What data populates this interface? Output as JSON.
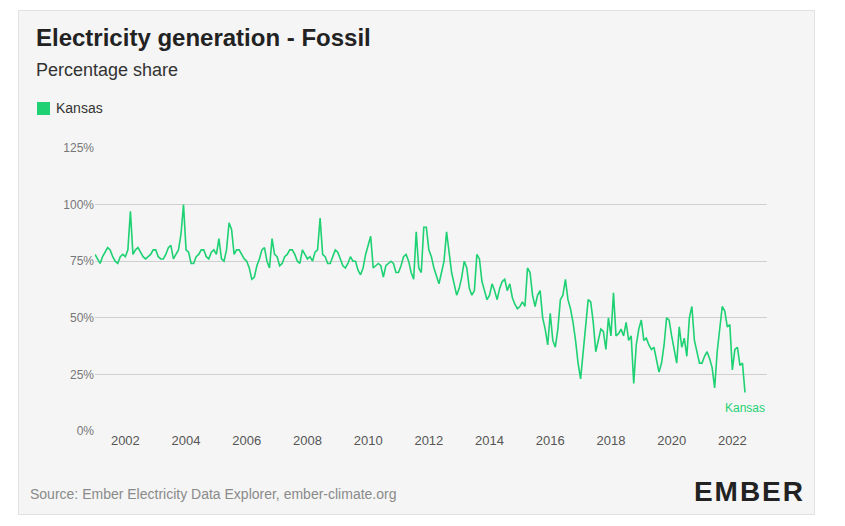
{
  "chart_data": {
    "type": "line",
    "title": "Electricity generation - Fossil",
    "subtitle": "Percentage share",
    "source": "Source: Ember Electricity Data Explorer, ember-climate.org",
    "logo": "EMBER",
    "legend": "top left",
    "grid": true,
    "ylim": [
      0,
      125
    ],
    "yticks": [
      {
        "value": 0,
        "label": "0%"
      },
      {
        "value": 25,
        "label": "25%"
      },
      {
        "value": 50,
        "label": "50%"
      },
      {
        "value": 75,
        "label": "75%"
      },
      {
        "value": 100,
        "label": "100%"
      },
      {
        "value": 125,
        "label": "125%"
      }
    ],
    "categories": [
      null,
      null,
      null,
      null,
      null,
      null,
      null,
      null,
      null,
      null,
      null,
      null,
      "2002",
      null,
      null,
      null,
      null,
      null,
      null,
      null,
      null,
      null,
      null,
      null,
      null,
      null,
      null,
      null,
      null,
      null,
      null,
      null,
      null,
      null,
      null,
      null,
      "2004",
      null,
      null,
      null,
      null,
      null,
      null,
      null,
      null,
      null,
      null,
      null,
      null,
      null,
      null,
      null,
      null,
      null,
      null,
      null,
      null,
      null,
      null,
      null,
      "2006",
      null,
      null,
      null,
      null,
      null,
      null,
      null,
      null,
      null,
      null,
      null,
      null,
      null,
      null,
      null,
      null,
      null,
      null,
      null,
      null,
      null,
      null,
      null,
      "2008",
      null,
      null,
      null,
      null,
      null,
      null,
      null,
      null,
      null,
      null,
      null,
      null,
      null,
      null,
      null,
      null,
      null,
      null,
      null,
      null,
      null,
      null,
      null,
      "2010",
      null,
      null,
      null,
      null,
      null,
      null,
      null,
      null,
      null,
      null,
      null,
      null,
      null,
      null,
      null,
      null,
      null,
      null,
      null,
      null,
      null,
      null,
      null,
      "2012",
      null,
      null,
      null,
      null,
      null,
      null,
      null,
      null,
      null,
      null,
      null,
      null,
      null,
      null,
      null,
      null,
      null,
      null,
      null,
      null,
      null,
      null,
      null,
      "2014",
      null,
      null,
      null,
      null,
      null,
      null,
      null,
      null,
      null,
      null,
      null,
      null,
      null,
      null,
      null,
      null,
      null,
      null,
      null,
      null,
      null,
      null,
      null,
      "2016",
      null,
      null,
      null,
      null,
      null,
      null,
      null,
      null,
      null,
      null,
      null,
      null,
      null,
      null,
      null,
      null,
      null,
      null,
      null,
      null,
      null,
      null,
      null,
      "2018",
      null,
      null,
      null,
      null,
      null,
      null,
      null,
      null,
      null,
      null,
      null,
      null,
      null,
      null,
      null,
      null,
      null,
      null,
      null,
      null,
      null,
      null,
      null,
      "2020",
      null,
      null,
      null,
      null,
      null,
      null,
      null,
      null,
      null,
      null,
      null,
      null,
      null,
      null,
      null,
      null,
      null,
      null,
      null,
      null,
      null,
      null,
      null,
      "2022",
      null,
      null,
      null,
      null,
      null
    ],
    "series": [
      {
        "name": "Kansas",
        "color": "#1ed173",
        "values": [
          78,
          76,
          74,
          77,
          79,
          81,
          80,
          77,
          75,
          74,
          77,
          78,
          77,
          80,
          97,
          78,
          80,
          81,
          79,
          77,
          76,
          77,
          78,
          80,
          80,
          77,
          76,
          76,
          78,
          81,
          82,
          76,
          78,
          80,
          87,
          100,
          80,
          79,
          74,
          74,
          77,
          78,
          80,
          80,
          77,
          76,
          79,
          80,
          78,
          85,
          76,
          75,
          80,
          92,
          89,
          78,
          80,
          80,
          78,
          76,
          75,
          72,
          67,
          68,
          73,
          76,
          80,
          81,
          75,
          72,
          85,
          78,
          77,
          73,
          74,
          77,
          78,
          80,
          80,
          78,
          75,
          74,
          80,
          78,
          76,
          77,
          75,
          79,
          80,
          94,
          78,
          77,
          74,
          74,
          77,
          80,
          79,
          76,
          73,
          72,
          74,
          77,
          75,
          75,
          71,
          69,
          72,
          78,
          82,
          86,
          72,
          73,
          74,
          73,
          68,
          73,
          74,
          75,
          74,
          70,
          70,
          73,
          77,
          78,
          75,
          70,
          67,
          88,
          72,
          70,
          90,
          90,
          80,
          77,
          72,
          68,
          65,
          70,
          75,
          88,
          80,
          70,
          65,
          60,
          63,
          68,
          75,
          72,
          63,
          60,
          62,
          78,
          76,
          66,
          62,
          58,
          60,
          65,
          62,
          58,
          63,
          66,
          67,
          62,
          65,
          59,
          56,
          54,
          55,
          57,
          55,
          72,
          70,
          60,
          55,
          60,
          62,
          50,
          45,
          38,
          52,
          40,
          37,
          45,
          58,
          60,
          67,
          58,
          54,
          48,
          40,
          30,
          23,
          35,
          48,
          58,
          57,
          48,
          35,
          40,
          45,
          44,
          36,
          50,
          42,
          61,
          42,
          43,
          45,
          42,
          48,
          40,
          42,
          21,
          38,
          45,
          49,
          40,
          41,
          38,
          36,
          37,
          31,
          26,
          30,
          38,
          50,
          49,
          42,
          35,
          30,
          46,
          37,
          41,
          33,
          50,
          55,
          40,
          35,
          30,
          30,
          33,
          35,
          32,
          28,
          19,
          35,
          45,
          55,
          53,
          46,
          47,
          27,
          36,
          37,
          29,
          30,
          17
        ]
      }
    ]
  }
}
